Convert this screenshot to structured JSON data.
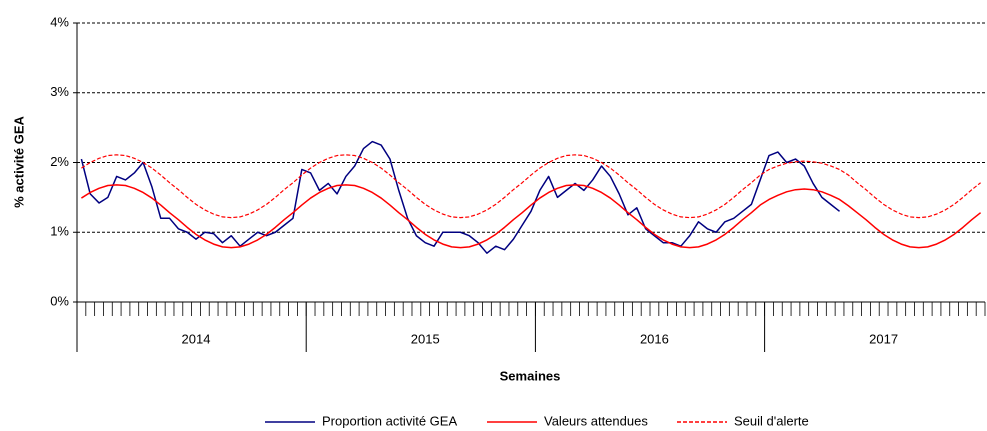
{
  "chart_data": {
    "type": "line",
    "y_label": "% activité GEA",
    "x_label": "Semaines",
    "ylim": [
      0,
      4
    ],
    "yticks": [
      {
        "value": 0,
        "label": "0%"
      },
      {
        "value": 1,
        "label": "1%"
      },
      {
        "value": 2,
        "label": "2%"
      },
      {
        "value": 3,
        "label": "3%"
      },
      {
        "value": 4,
        "label": "4%"
      }
    ],
    "grid": true,
    "legend": "bottom",
    "categories": [
      null,
      null,
      null,
      null,
      null,
      null,
      null,
      null,
      null,
      null,
      null,
      null,
      null,
      "2014",
      null,
      null,
      null,
      null,
      null,
      null,
      null,
      null,
      null,
      null,
      null,
      null,
      null,
      null,
      null,
      null,
      null,
      null,
      null,
      null,
      null,
      null,
      null,
      null,
      null,
      "2015",
      null,
      null,
      null,
      null,
      null,
      null,
      null,
      null,
      null,
      null,
      null,
      null,
      null,
      null,
      null,
      null,
      null,
      null,
      null,
      null,
      null,
      null,
      null,
      null,
      null,
      "2016",
      null,
      null,
      null,
      null,
      null,
      null,
      null,
      null,
      null,
      null,
      null,
      null,
      null,
      null,
      null,
      null,
      null,
      null,
      null,
      null,
      null,
      null,
      null,
      null,
      null,
      "2017",
      null,
      null,
      null,
      null,
      null,
      null,
      null,
      null,
      null,
      null,
      null
    ],
    "series": [
      {
        "name": "Proportion activité GEA",
        "color": "#000080",
        "style": "solid",
        "values": [
          2.05,
          1.55,
          1.42,
          1.5,
          1.8,
          1.75,
          1.85,
          2.0,
          1.65,
          1.2,
          1.2,
          1.05,
          1.0,
          0.9,
          1.0,
          0.98,
          0.85,
          0.95,
          0.8,
          0.9,
          1.0,
          0.95,
          1.0,
          1.1,
          1.2,
          1.9,
          1.85,
          1.6,
          1.7,
          1.55,
          1.8,
          1.95,
          2.2,
          2.3,
          2.25,
          2.05,
          1.6,
          1.2,
          0.95,
          0.85,
          0.8,
          1.0,
          1.0,
          1.0,
          0.95,
          0.85,
          0.7,
          0.8,
          0.75,
          0.9,
          1.1,
          1.3,
          1.6,
          1.8,
          1.5,
          1.6,
          1.7,
          1.6,
          1.75,
          1.95,
          1.8,
          1.55,
          1.25,
          1.35,
          1.05,
          0.95,
          0.85,
          0.85,
          0.8,
          0.95,
          1.15,
          1.05,
          1.0,
          1.15,
          1.2,
          1.3,
          1.4,
          1.75,
          2.1,
          2.15,
          2.0,
          2.05,
          1.95,
          1.7,
          1.5,
          1.4,
          1.3,
          null,
          null,
          null,
          null,
          null,
          null,
          null,
          null,
          null,
          null,
          null,
          null,
          null,
          null,
          null,
          null
        ]
      },
      {
        "name": "Valeurs attendues",
        "color": "#ff0000",
        "style": "solid",
        "values": [
          1.49,
          1.57,
          1.63,
          1.67,
          1.68,
          1.67,
          1.63,
          1.57,
          1.49,
          1.39,
          1.28,
          1.18,
          1.07,
          0.97,
          0.89,
          0.83,
          0.79,
          0.78,
          0.79,
          0.83,
          0.89,
          0.97,
          1.07,
          1.18,
          1.28,
          1.39,
          1.49,
          1.57,
          1.63,
          1.67,
          1.68,
          1.67,
          1.63,
          1.57,
          1.49,
          1.39,
          1.28,
          1.18,
          1.07,
          0.97,
          0.89,
          0.83,
          0.79,
          0.78,
          0.79,
          0.83,
          0.89,
          0.97,
          1.07,
          1.18,
          1.28,
          1.39,
          1.49,
          1.57,
          1.63,
          1.67,
          1.68,
          1.67,
          1.63,
          1.57,
          1.49,
          1.39,
          1.28,
          1.18,
          1.07,
          0.97,
          0.89,
          0.83,
          0.79,
          0.78,
          0.79,
          0.83,
          0.89,
          0.97,
          1.07,
          1.18,
          1.28,
          1.39,
          1.47,
          1.53,
          1.58,
          1.61,
          1.62,
          1.61,
          1.58,
          1.53,
          1.47,
          1.38,
          1.28,
          1.18,
          1.07,
          0.97,
          0.89,
          0.83,
          0.79,
          0.78,
          0.79,
          0.83,
          0.89,
          0.97,
          1.07,
          1.18,
          1.28
        ]
      },
      {
        "name": "Seuil d'alerte",
        "color": "#ff0000",
        "style": "dashed",
        "values": [
          1.92,
          2.0,
          2.06,
          2.1,
          2.11,
          2.1,
          2.06,
          2.0,
          1.92,
          1.82,
          1.71,
          1.61,
          1.5,
          1.4,
          1.32,
          1.26,
          1.22,
          1.21,
          1.22,
          1.26,
          1.32,
          1.4,
          1.5,
          1.61,
          1.71,
          1.82,
          1.92,
          2.0,
          2.06,
          2.1,
          2.11,
          2.1,
          2.06,
          2.0,
          1.92,
          1.82,
          1.71,
          1.61,
          1.5,
          1.4,
          1.32,
          1.26,
          1.22,
          1.21,
          1.22,
          1.26,
          1.32,
          1.4,
          1.5,
          1.61,
          1.71,
          1.82,
          1.92,
          2.0,
          2.06,
          2.1,
          2.11,
          2.1,
          2.06,
          2.0,
          1.92,
          1.82,
          1.71,
          1.61,
          1.5,
          1.4,
          1.32,
          1.26,
          1.22,
          1.21,
          1.22,
          1.26,
          1.32,
          1.4,
          1.5,
          1.61,
          1.71,
          1.82,
          1.9,
          1.95,
          1.99,
          2.01,
          2.02,
          2.01,
          1.99,
          1.95,
          1.9,
          1.82,
          1.71,
          1.61,
          1.5,
          1.4,
          1.32,
          1.26,
          1.22,
          1.21,
          1.22,
          1.26,
          1.32,
          1.4,
          1.5,
          1.61,
          1.71
        ]
      }
    ]
  }
}
